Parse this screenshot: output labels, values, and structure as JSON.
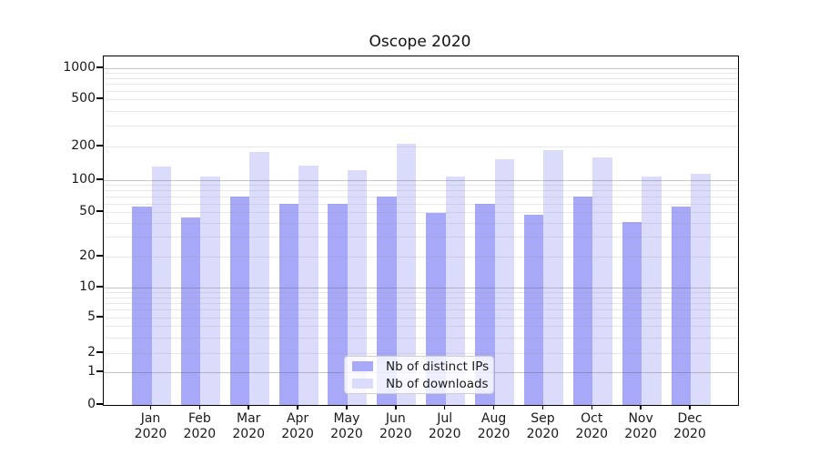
{
  "title": "Oscope 2020",
  "chart_data": {
    "type": "bar",
    "title": "Oscope 2020",
    "y_scale": "log above 1, linear 0-1 (symlog-like)",
    "categories": [
      "Jan 2020",
      "Feb 2020",
      "Mar 2020",
      "Apr 2020",
      "May 2020",
      "Jun 2020",
      "Jul 2020",
      "Aug 2020",
      "Sep 2020",
      "Oct 2020",
      "Nov 2020",
      "Dec 2020"
    ],
    "series": [
      {
        "name": "Nb of distinct IPs",
        "color": "#a7a8f7",
        "values": [
          56,
          45,
          70,
          60,
          60,
          70,
          49,
          60,
          47,
          70,
          41,
          56
        ]
      },
      {
        "name": "Nb of downloads",
        "color": "#dbdcfb",
        "values": [
          133,
          108,
          180,
          135,
          123,
          210,
          108,
          155,
          185,
          160,
          108,
          114
        ]
      }
    ],
    "yticks": [
      0,
      1,
      2,
      5,
      10,
      20,
      50,
      100,
      200,
      500,
      1000
    ],
    "ylim": [
      0,
      1270
    ],
    "grid": "horizontal, major gridlines at powers of 10, minor log gridlines",
    "legend_position": "lower center"
  },
  "y_axis": {
    "tick_labels": [
      "0",
      "1",
      "2",
      "5",
      "10",
      "20",
      "50",
      "100",
      "200",
      "500",
      "1000"
    ]
  },
  "x_axis": {
    "tick_labels": [
      [
        "Jan",
        "2020"
      ],
      [
        "Feb",
        "2020"
      ],
      [
        "Mar",
        "2020"
      ],
      [
        "Apr",
        "2020"
      ],
      [
        "May",
        "2020"
      ],
      [
        "Jun",
        "2020"
      ],
      [
        "Jul",
        "2020"
      ],
      [
        "Aug",
        "2020"
      ],
      [
        "Sep",
        "2020"
      ],
      [
        "Oct",
        "2020"
      ],
      [
        "Nov",
        "2020"
      ],
      [
        "Dec",
        "2020"
      ]
    ]
  },
  "legend": {
    "items": [
      {
        "label": "Nb of distinct IPs",
        "swatch_color": "#a7a8f7"
      },
      {
        "label": "Nb of downloads",
        "swatch_color": "#dbdcfb"
      }
    ]
  },
  "colors": {
    "bar_distinct_ips": "#a7a8f7",
    "bar_downloads": "#dbdcfb",
    "grid_major": "#c8c8c8",
    "grid_minor": "#e6e6e6",
    "axis": "#000000",
    "text": "#1a1a1a",
    "background": "#ffffff"
  }
}
